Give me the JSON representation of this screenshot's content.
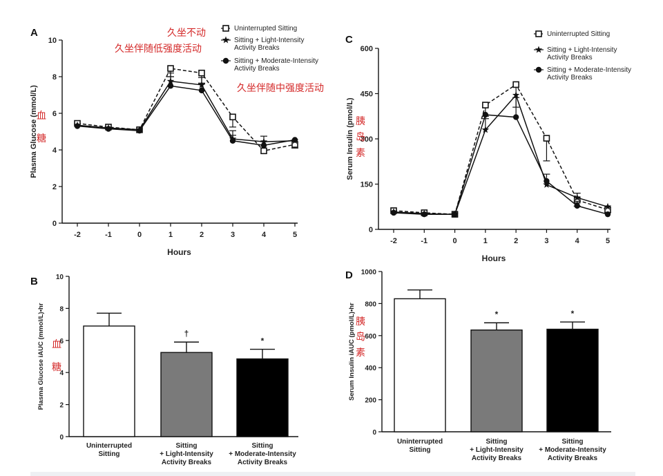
{
  "colors": {
    "red": "#d42a2a",
    "gray_bar": "#7a7a7a",
    "black_bar": "#000000"
  },
  "chart_data": [
    {
      "id": "A",
      "type": "line",
      "panel_label": "A",
      "ylabel": "Plasma Glucose (mmol/L)",
      "xlabel": "Hours",
      "ylim": [
        0,
        10
      ],
      "yticks": [
        0,
        2,
        4,
        6,
        8,
        10
      ],
      "x": [
        -2,
        -1,
        0,
        1,
        2,
        3,
        4,
        5
      ],
      "series": [
        {
          "name": "Uninterrupted Sitting",
          "marker": "square",
          "dash": true,
          "values": [
            5.45,
            5.25,
            5.1,
            8.45,
            8.2,
            5.8,
            3.95,
            4.3
          ],
          "err": [
            0,
            0,
            0,
            0.45,
            0.55,
            0.55,
            0,
            0.2
          ]
        },
        {
          "name": "Sitting + Light-Intensity Activity Breaks",
          "marker": "star",
          "dash": false,
          "values": [
            5.35,
            5.2,
            5.1,
            7.75,
            7.55,
            4.6,
            4.45,
            4.5
          ],
          "err": [
            0,
            0,
            0,
            0.45,
            0.4,
            0.45,
            0.3,
            0
          ]
        },
        {
          "name": "Sitting + Moderate-Intensity Activity Breaks",
          "marker": "circle",
          "dash": false,
          "values": [
            5.3,
            5.15,
            5.05,
            7.5,
            7.25,
            4.5,
            4.25,
            4.55
          ],
          "err": [
            0,
            0,
            0,
            0.5,
            0.35,
            0.3,
            0.2,
            0
          ]
        }
      ],
      "legend": [
        "Uninterrupted Sitting",
        "Sitting + Light-Intensity",
        "Activity Breaks",
        "Sitting + Moderate-Intensity",
        "Activity Breaks"
      ],
      "annotations_cn": [
        "久坐不动",
        "久坐伴随低强度活动",
        "久坐伴随中强度活动",
        "血",
        "糖"
      ]
    },
    {
      "id": "C",
      "type": "line",
      "panel_label": "C",
      "ylabel": "Serum Insulin (pmol/L)",
      "xlabel": "Hours",
      "ylim": [
        0,
        600
      ],
      "yticks": [
        0,
        150,
        300,
        450,
        600
      ],
      "x": [
        -2,
        -1,
        0,
        1,
        2,
        3,
        4,
        5
      ],
      "series": [
        {
          "name": "Uninterrupted Sitting",
          "marker": "square",
          "dash": true,
          "values": [
            62,
            55,
            50,
            412,
            480,
            302,
            97,
            65
          ],
          "err": [
            0,
            0,
            0,
            45,
            75,
            75,
            20,
            10
          ]
        },
        {
          "name": "Sitting + Light-Intensity Activity Breaks",
          "marker": "star",
          "dash": false,
          "values": [
            58,
            52,
            50,
            330,
            445,
            148,
            105,
            75
          ],
          "err": [
            0,
            0,
            0,
            45,
            0,
            35,
            15,
            0
          ]
        },
        {
          "name": "Sitting + Moderate-Intensity Activity Breaks",
          "marker": "circle",
          "dash": false,
          "values": [
            55,
            50,
            50,
            380,
            372,
            160,
            78,
            50
          ],
          "err": [
            0,
            0,
            0,
            0,
            65,
            0,
            15,
            0
          ]
        }
      ],
      "legend": [
        "Uninterrupted Sitting",
        "Sitting + Light-Intensity",
        "Activity Breaks",
        "Sitting + Moderate-Intensity",
        "Activity Breaks"
      ],
      "annotations_cn": [
        "胰",
        "岛",
        "素"
      ]
    },
    {
      "id": "B",
      "type": "bar",
      "panel_label": "B",
      "ylabel": "Plasma Glucose iAUC (mmol/L)•hr",
      "ylim": [
        0,
        10
      ],
      "yticks": [
        0,
        2,
        4,
        6,
        8,
        10
      ],
      "categories": [
        [
          "Uninterrupted",
          "Sitting"
        ],
        [
          "Sitting",
          "+ Light-Intensity",
          "Activity Breaks"
        ],
        [
          "Sitting",
          "+ Moderate-Intensity",
          "Activity Breaks"
        ]
      ],
      "values": [
        6.9,
        5.25,
        4.85
      ],
      "err": [
        0.8,
        0.65,
        0.6
      ],
      "marks": [
        "",
        "†",
        "*"
      ],
      "annotations_cn": [
        "血",
        "糖"
      ]
    },
    {
      "id": "D",
      "type": "bar",
      "panel_label": "D",
      "ylabel": "Serum Insulin iAUC (pmol/L)•hr",
      "ylim": [
        0,
        1000
      ],
      "yticks": [
        0,
        200,
        400,
        600,
        800,
        1000
      ],
      "categories": [
        [
          "Uninterrupted",
          "Sitting"
        ],
        [
          "Sitting",
          "+ Light-Intensity",
          "Activity Breaks"
        ],
        [
          "Sitting",
          "+ Moderate-Intensity",
          "Activity Breaks"
        ]
      ],
      "values": [
        830,
        635,
        640
      ],
      "err": [
        55,
        45,
        45
      ],
      "marks": [
        "",
        "*",
        "*"
      ],
      "annotations_cn": [
        "胰",
        "岛",
        "素"
      ]
    }
  ]
}
